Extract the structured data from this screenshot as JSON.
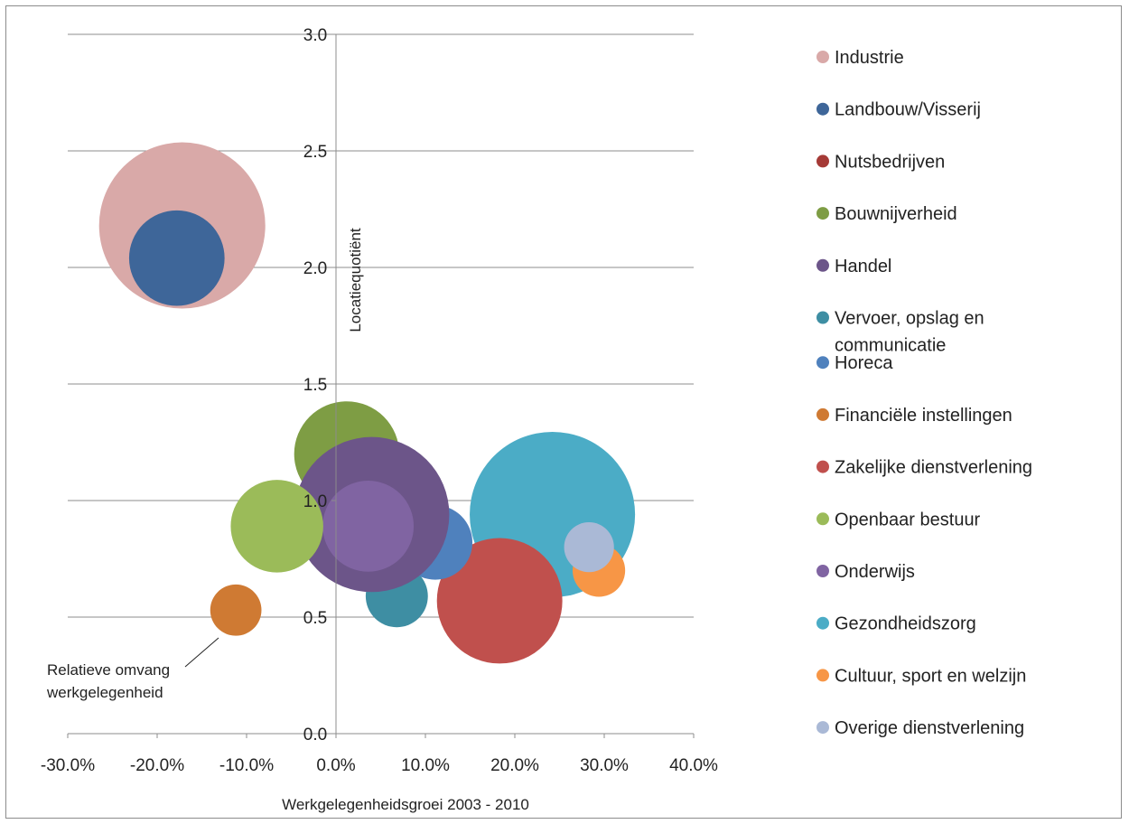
{
  "chart_data": {
    "type": "bubble",
    "title": "",
    "xlabel": "Werkgelegenheidsgroei 2003 - 2010",
    "ylabel": "Locatiequotiënt",
    "xlim": [
      -0.3,
      0.4
    ],
    "ylim": [
      0.0,
      3.0
    ],
    "x_ticks": [
      "-30.0%",
      "-20.0%",
      "-10.0%",
      "0.0%",
      "10.0%",
      "20.0%",
      "30.0%",
      "40.0%"
    ],
    "y_ticks": [
      "0.0",
      "0.5",
      "1.0",
      "1.5",
      "2.0",
      "2.5",
      "3.0"
    ],
    "grid": "horizontal",
    "legend_position": "right",
    "annotation": "Relatieve omvang werkgelegenheid",
    "series": [
      {
        "name": "Industrie",
        "x": -0.172,
        "y": 2.18,
        "size": 1.0,
        "color": "#D9A9A8"
      },
      {
        "name": "Landbouw/Visserij",
        "x": -0.178,
        "y": 2.04,
        "size": 0.33,
        "color": "#3E6699"
      },
      {
        "name": "Nutsbedrijven",
        "x": 0.0,
        "y": 0.0,
        "size": 0.0,
        "color": "#A53A36"
      },
      {
        "name": "Bouwnijverheid",
        "x": 0.012,
        "y": 1.2,
        "size": 0.4,
        "color": "#7E9D44"
      },
      {
        "name": "Handel",
        "x": 0.04,
        "y": 0.94,
        "size": 0.87,
        "color": "#6C5589"
      },
      {
        "name": "Vervoer, opslag en communicatie",
        "x": 0.068,
        "y": 0.59,
        "size": 0.14,
        "color": "#3E8EA3"
      },
      {
        "name": "Horeca",
        "x": 0.111,
        "y": 0.82,
        "size": 0.2,
        "color": "#4F81BD"
      },
      {
        "name": "Financiële instellingen",
        "x": -0.112,
        "y": 0.53,
        "size": 0.095,
        "color": "#CF7A33"
      },
      {
        "name": "Zakelijke dienstverlening",
        "x": 0.183,
        "y": 0.57,
        "size": 0.57,
        "color": "#C0504D"
      },
      {
        "name": "Openbaar bestuur",
        "x": -0.066,
        "y": 0.89,
        "size": 0.31,
        "color": "#9BBB59"
      },
      {
        "name": "Onderwijs",
        "x": 0.036,
        "y": 0.89,
        "size": 0.3,
        "color": "#8064A2"
      },
      {
        "name": "Gezondheidszorg",
        "x": 0.242,
        "y": 0.94,
        "size": 0.99,
        "color": "#4BACC6"
      },
      {
        "name": "Cultuur, sport en welzijn",
        "x": 0.294,
        "y": 0.7,
        "size": 0.1,
        "color": "#F79646"
      },
      {
        "name": "Overige dienstverlening",
        "x": 0.283,
        "y": 0.8,
        "size": 0.09,
        "color": "#AAB9D6"
      }
    ],
    "draw_order": [
      "Industrie",
      "Landbouw/Visserij",
      "Gezondheidszorg",
      "Zakelijke dienstverlening",
      "Cultuur, sport en welzijn",
      "Overige dienstverlening",
      "Bouwnijverheid",
      "Vervoer, opslag en communicatie",
      "Horeca",
      "Handel",
      "Onderwijs",
      "Openbaar bestuur",
      "Financiële instellingen",
      "Nutsbedrijven"
    ]
  }
}
